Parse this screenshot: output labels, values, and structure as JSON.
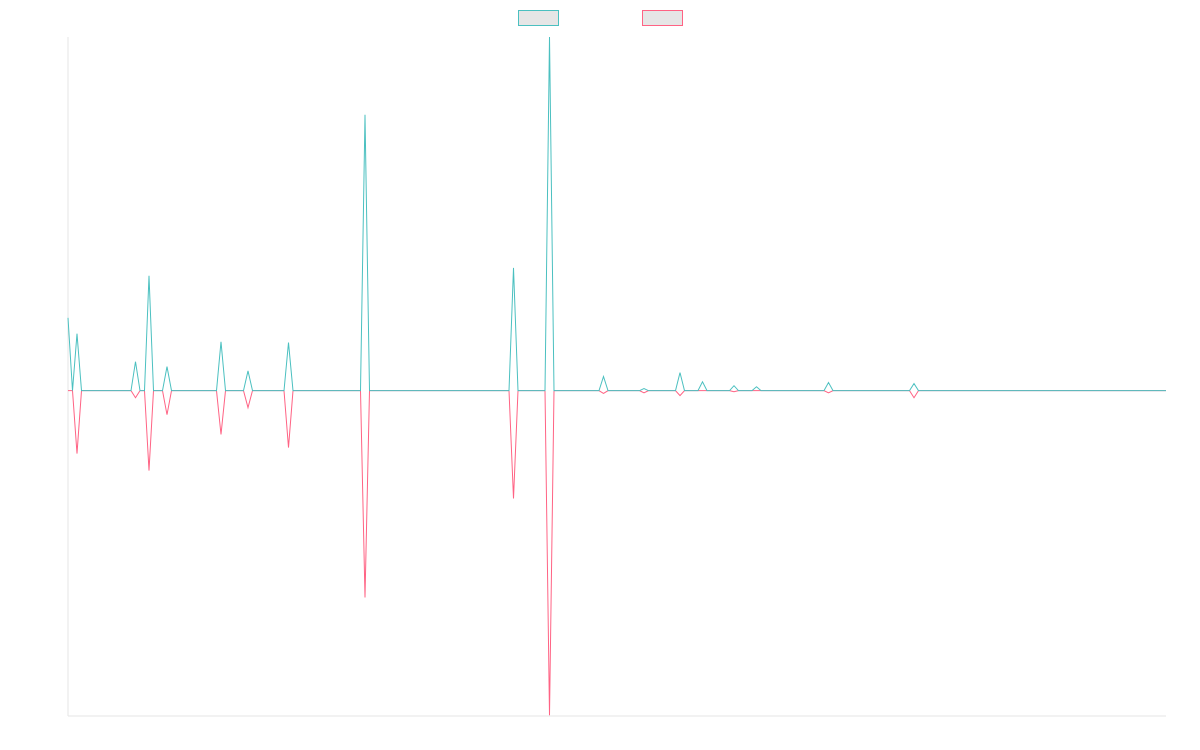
{
  "chart_data": {
    "type": "line",
    "x": [
      0,
      1,
      2,
      3,
      14,
      15,
      16,
      17,
      18,
      19,
      21,
      22,
      23,
      33,
      34,
      35,
      39,
      40,
      41,
      48,
      49,
      50,
      65,
      66,
      67,
      98,
      99,
      100,
      106,
      107,
      108,
      118,
      119,
      120,
      127,
      128,
      129,
      135,
      136,
      137,
      140,
      141,
      142,
      147,
      148,
      149,
      152,
      153,
      154,
      168,
      169,
      170,
      187,
      188,
      189,
      244
    ],
    "xlim": [
      0,
      244
    ],
    "ylim": [
      -92,
      100
    ],
    "grid": false,
    "legend": "top",
    "series": [
      {
        "color": "#4bc0c0",
        "values": [
          20.6,
          0,
          16.1,
          0,
          0,
          8.2,
          0,
          0,
          32.5,
          0,
          0,
          6.8,
          0,
          0,
          13.8,
          0,
          0,
          5.6,
          0,
          0,
          13.6,
          0,
          0,
          78,
          0,
          0,
          34.7,
          0,
          0,
          100,
          0,
          0,
          4,
          0,
          0,
          0.6,
          0,
          0,
          5.1,
          0,
          0,
          2.5,
          0,
          0,
          1.4,
          0,
          0,
          1.1,
          0,
          0,
          2.3,
          0,
          0,
          2,
          0,
          0
        ]
      },
      {
        "color": "#ff6384",
        "values": [
          0,
          0,
          -17.8,
          0,
          0,
          -2,
          0,
          0,
          -22.6,
          0,
          0,
          -6.8,
          0,
          0,
          -12.4,
          0,
          0,
          -4.8,
          0,
          0,
          -16.1,
          0,
          0,
          -58.5,
          0,
          0,
          -30.5,
          0,
          0,
          -91.8,
          0,
          0,
          -0.8,
          0,
          0,
          -0.6,
          0,
          0,
          -1.4,
          0,
          0,
          0,
          0,
          0,
          -0.3,
          0,
          0,
          0,
          0,
          0,
          -0.6,
          0,
          0,
          -2,
          0,
          0
        ]
      }
    ]
  }
}
